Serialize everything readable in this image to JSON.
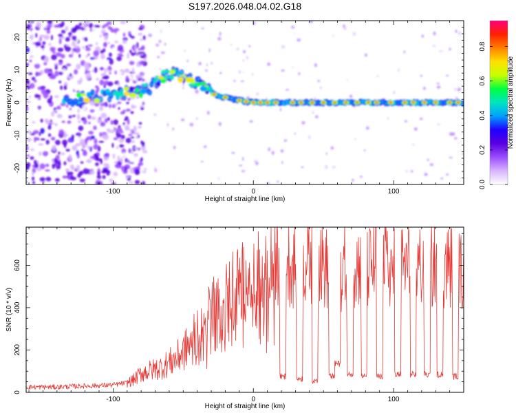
{
  "title": "S197.2026.048.04.02.G18",
  "colors": {
    "snr_line": "#e53935",
    "colormap": [
      "#ffffff",
      "#d8b4ff",
      "#9b4dff",
      "#5a00e0",
      "#1f00ff",
      "#00a0ff",
      "#00e5c0",
      "#00ff40",
      "#c8ff00",
      "#ffe000",
      "#ff8000",
      "#ff2000",
      "#ff0080"
    ]
  },
  "chart_data": [
    {
      "type": "heatmap",
      "title": "",
      "xlabel": "Height of straight line (km)",
      "ylabel": "Frequency (Hz)",
      "xlim": [
        -162,
        150
      ],
      "ylim": [
        -25,
        25
      ],
      "xticks": [
        -100,
        0,
        100
      ],
      "yticks": [
        -20,
        -10,
        0,
        10,
        20
      ],
      "colorbar": {
        "label": "Normalized spectral amplitude",
        "range": [
          0,
          0.95
        ],
        "ticks": [
          0.0,
          0.2,
          0.4,
          0.6,
          0.8
        ]
      },
      "ridge": [
        {
          "x": -130,
          "y": 1
        },
        {
          "x": -110,
          "y": 2
        },
        {
          "x": -90,
          "y": 3
        },
        {
          "x": -75,
          "y": 4
        },
        {
          "x": -65,
          "y": 8
        },
        {
          "x": -55,
          "y": 9
        },
        {
          "x": -45,
          "y": 7
        },
        {
          "x": -35,
          "y": 5
        },
        {
          "x": -28,
          "y": 2.5
        },
        {
          "x": -15,
          "y": 1
        },
        {
          "x": 0,
          "y": 0
        },
        {
          "x": 50,
          "y": 0
        },
        {
          "x": 100,
          "y": 0
        },
        {
          "x": 150,
          "y": 0
        }
      ],
      "peaks_x": [
        -28,
        -20,
        -10,
        -5,
        0,
        5,
        10,
        16,
        28,
        34,
        42,
        50,
        58,
        66,
        74,
        82,
        88,
        98,
        108,
        114,
        122,
        130,
        140,
        146
      ]
    },
    {
      "type": "line",
      "title": "",
      "xlabel": "Height of straight line (km)",
      "ylabel": "SNR (10 * v/v)",
      "xlim": [
        -162,
        150
      ],
      "ylim": [
        0,
        780
      ],
      "xticks": [
        -100,
        0,
        100
      ],
      "yticks": [
        0,
        200,
        400,
        600
      ],
      "series": [
        {
          "name": "SNR",
          "x": [
            -162,
            -150,
            -140,
            -130,
            -120,
            -110,
            -100,
            -90,
            -85,
            -80,
            -75,
            -70,
            -65,
            -60,
            -55,
            -50,
            -45,
            -40,
            -35,
            -32,
            -30,
            -25,
            -20,
            -15,
            -10,
            -5,
            0,
            5,
            10,
            15,
            20,
            25,
            30,
            35,
            40,
            45,
            50,
            55,
            60,
            65,
            70,
            75,
            80,
            85,
            90,
            95,
            100,
            105,
            110,
            115,
            120,
            125,
            130,
            135,
            140,
            145,
            150
          ],
          "values": [
            25,
            25,
            25,
            28,
            30,
            32,
            35,
            45,
            60,
            90,
            100,
            110,
            120,
            140,
            160,
            190,
            230,
            300,
            380,
            420,
            400,
            430,
            460,
            500,
            520,
            540,
            550,
            580,
            600,
            620,
            640,
            620,
            600,
            610,
            620,
            640,
            600,
            560,
            560,
            600,
            620,
            600,
            580,
            600,
            620,
            600,
            580,
            590,
            600,
            580,
            600,
            580,
            600,
            590,
            600,
            580,
            560
          ],
          "dips": [
            {
              "x": 21,
              "value": 60
            },
            {
              "x": 33,
              "value": 50
            },
            {
              "x": 44,
              "value": 40
            },
            {
              "x": 56,
              "value": 60
            },
            {
              "x": 60,
              "value": 120
            },
            {
              "x": 69,
              "value": 70
            },
            {
              "x": 79,
              "value": 60
            },
            {
              "x": 90,
              "value": 60
            },
            {
              "x": 103,
              "value": 70
            },
            {
              "x": 114,
              "value": 70
            },
            {
              "x": 124,
              "value": 70
            },
            {
              "x": 133,
              "value": 70
            },
            {
              "x": 144,
              "value": 60
            }
          ]
        }
      ]
    }
  ]
}
